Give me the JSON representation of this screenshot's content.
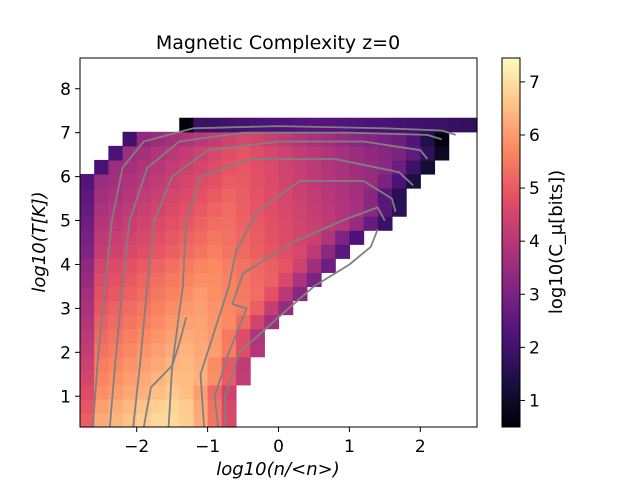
{
  "chart_data": {
    "type": "heatmap",
    "title": "Magnetic Complexity z=0",
    "xlabel": "log10(n/<n>)",
    "ylabel": "log10(T[K])",
    "colorbar_label": "log10(C_μ[bits])",
    "colormap": "magma",
    "xlim": [
      -2.8,
      2.8
    ],
    "ylim": [
      0.3,
      8.7
    ],
    "clim": [
      0.5,
      7.45
    ],
    "x_ticks": [
      -2,
      -1,
      0,
      1,
      2
    ],
    "x_tick_labels": [
      "−2",
      "−1",
      "0",
      "1",
      "2"
    ],
    "y_ticks": [
      1,
      2,
      3,
      4,
      5,
      6,
      7,
      8
    ],
    "y_tick_labels": [
      "1",
      "2",
      "3",
      "4",
      "5",
      "6",
      "7",
      "8"
    ],
    "colorbar_ticks": [
      1,
      2,
      3,
      4,
      5,
      6,
      7
    ],
    "colorbar_tick_labels": [
      "1",
      "2",
      "3",
      "4",
      "5",
      "6",
      "7"
    ],
    "grid": false,
    "bin_width_x": 0.2,
    "bin_width_y": 0.32,
    "contour_color": "#808080",
    "rows": [
      {
        "y0": 0.3,
        "x0": -2.8,
        "x1": -0.6,
        "peak": 7.0
      },
      {
        "y0": 0.62,
        "x0": -2.8,
        "x1": -0.6,
        "peak": 6.9
      },
      {
        "y0": 0.94,
        "x0": -2.8,
        "x1": -0.6,
        "peak": 6.7
      },
      {
        "y0": 1.26,
        "x0": -2.8,
        "x1": -0.4,
        "peak": 6.6
      },
      {
        "y0": 1.58,
        "x0": -2.8,
        "x1": -0.4,
        "peak": 6.5
      },
      {
        "y0": 1.9,
        "x0": -2.8,
        "x1": -0.2,
        "peak": 6.4
      },
      {
        "y0": 2.22,
        "x0": -2.8,
        "x1": -0.2,
        "peak": 6.3
      },
      {
        "y0": 2.54,
        "x0": -2.8,
        "x1": 0.0,
        "peak": 6.2
      },
      {
        "y0": 2.86,
        "x0": -2.8,
        "x1": 0.2,
        "peak": 6.1
      },
      {
        "y0": 3.18,
        "x0": -2.8,
        "x1": 0.4,
        "peak": 6.0
      },
      {
        "y0": 3.5,
        "x0": -2.8,
        "x1": 0.6,
        "peak": 5.9
      },
      {
        "y0": 3.82,
        "x0": -2.8,
        "x1": 0.8,
        "peak": 5.8
      },
      {
        "y0": 4.14,
        "x0": -2.8,
        "x1": 1.0,
        "peak": 5.6
      },
      {
        "y0": 4.46,
        "x0": -2.8,
        "x1": 1.2,
        "peak": 5.5
      },
      {
        "y0": 4.78,
        "x0": -2.8,
        "x1": 1.6,
        "peak": 5.4
      },
      {
        "y0": 5.1,
        "x0": -2.8,
        "x1": 1.8,
        "peak": 5.3
      },
      {
        "y0": 5.42,
        "x0": -2.8,
        "x1": 1.8,
        "peak": 5.2
      },
      {
        "y0": 5.74,
        "x0": -2.8,
        "x1": 2.0,
        "peak": 5.1
      },
      {
        "y0": 6.06,
        "x0": -2.6,
        "x1": 2.2,
        "peak": 5.0
      },
      {
        "y0": 6.38,
        "x0": -2.4,
        "x1": 2.4,
        "peak": 4.9
      },
      {
        "y0": 6.7,
        "x0": -2.2,
        "x1": 2.4,
        "peak": 4.6
      },
      {
        "y0": 7.02,
        "x0": -1.4,
        "x1": 2.8,
        "peak": 2.4
      }
    ],
    "contours": [
      [
        [
          -2.62,
          0.3
        ],
        [
          -2.55,
          1.8
        ],
        [
          -2.45,
          3.5
        ],
        [
          -2.35,
          5.0
        ],
        [
          -2.2,
          6.2
        ],
        [
          -1.9,
          6.8
        ],
        [
          -1.2,
          7.1
        ],
        [
          0.0,
          7.15
        ],
        [
          1.5,
          7.1
        ],
        [
          2.3,
          7.05
        ],
        [
          2.5,
          6.95
        ]
      ],
      [
        [
          -2.38,
          0.3
        ],
        [
          -2.3,
          1.8
        ],
        [
          -2.2,
          3.5
        ],
        [
          -2.1,
          5.0
        ],
        [
          -1.85,
          6.2
        ],
        [
          -1.4,
          6.8
        ],
        [
          -0.5,
          7.0
        ],
        [
          1.0,
          7.0
        ],
        [
          2.1,
          6.95
        ],
        [
          2.3,
          6.85
        ]
      ],
      [
        [
          -2.05,
          0.3
        ],
        [
          -1.95,
          1.8
        ],
        [
          -1.85,
          3.5
        ],
        [
          -1.75,
          5.0
        ],
        [
          -1.5,
          6.0
        ],
        [
          -1.0,
          6.6
        ],
        [
          0.0,
          6.8
        ],
        [
          1.2,
          6.8
        ],
        [
          2.0,
          6.6
        ],
        [
          2.1,
          6.4
        ]
      ],
      [
        [
          -1.55,
          0.3
        ],
        [
          -1.5,
          1.7
        ],
        [
          -1.35,
          3.5
        ],
        [
          -1.3,
          5.0
        ],
        [
          -1.1,
          6.0
        ],
        [
          -0.4,
          6.4
        ],
        [
          0.8,
          6.4
        ],
        [
          1.7,
          6.1
        ],
        [
          1.9,
          5.8
        ]
      ],
      [
        [
          -1.05,
          0.3
        ],
        [
          -1.1,
          1.5
        ],
        [
          -0.9,
          2.5
        ],
        [
          -0.7,
          3.5
        ],
        [
          -0.6,
          4.3
        ],
        [
          -0.3,
          5.2
        ],
        [
          0.3,
          5.9
        ],
        [
          1.2,
          5.9
        ],
        [
          1.6,
          5.5
        ],
        [
          1.65,
          5.2
        ]
      ],
      [
        [
          -0.85,
          0.3
        ],
        [
          -0.9,
          1.0
        ],
        [
          -0.7,
          2.0
        ],
        [
          -0.45,
          3.0
        ],
        [
          -0.65,
          3.1
        ],
        [
          -0.5,
          3.8
        ],
        [
          0.2,
          4.5
        ],
        [
          0.9,
          5.0
        ],
        [
          1.4,
          5.3
        ],
        [
          1.5,
          5.0
        ]
      ],
      [
        [
          -1.9,
          0.3
        ],
        [
          -1.8,
          1.2
        ],
        [
          -1.5,
          1.7
        ],
        [
          -1.4,
          2.2
        ],
        [
          -1.3,
          2.8
        ]
      ],
      [
        [
          -0.75,
          0.3
        ],
        [
          -0.75,
          1.0
        ],
        [
          -0.55,
          2.0
        ],
        [
          0.0,
          2.8
        ],
        [
          0.5,
          3.5
        ],
        [
          1.0,
          4.0
        ],
        [
          1.3,
          4.4
        ],
        [
          1.4,
          4.8
        ]
      ]
    ]
  }
}
